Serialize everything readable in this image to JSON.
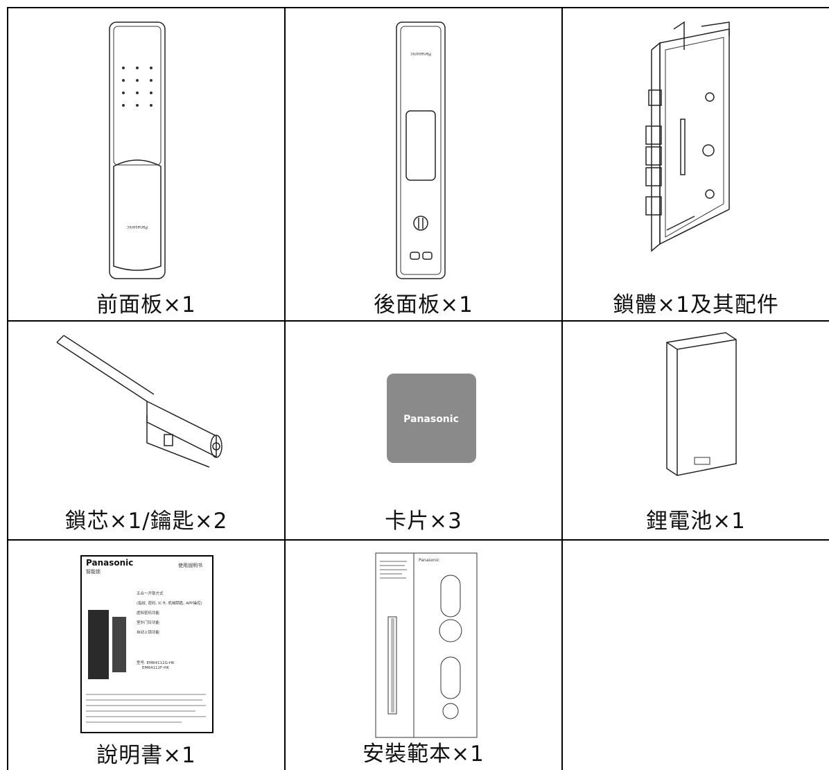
{
  "items": [
    {
      "caption": "前面板×1",
      "brand": "Panasonic"
    },
    {
      "caption": "後面板×1",
      "brand": "Panasonic"
    },
    {
      "caption": "鎖體×1及其配件"
    },
    {
      "caption": "鎖芯×1/鑰匙×2"
    },
    {
      "caption": "卡片×3",
      "label": "Panasonic"
    },
    {
      "caption": "鋰電池×1"
    },
    {
      "caption": "說明書×1",
      "brand": "Panasonic",
      "doc_title": "使用說明书",
      "subtitle": "智能锁",
      "lines": [
        "五合一开锁方式",
        "(指纹, 密码, IC卡, 机械钥匙, APP操控)",
        "虚拟密码功能",
        "室外门铃功能",
        "自动上锁功能"
      ],
      "model": [
        "型号: EMR4112G-HK",
        "EMR4112F-HK"
      ]
    },
    {
      "caption": "安裝範本×1",
      "brand": "Panasonic"
    },
    {}
  ]
}
